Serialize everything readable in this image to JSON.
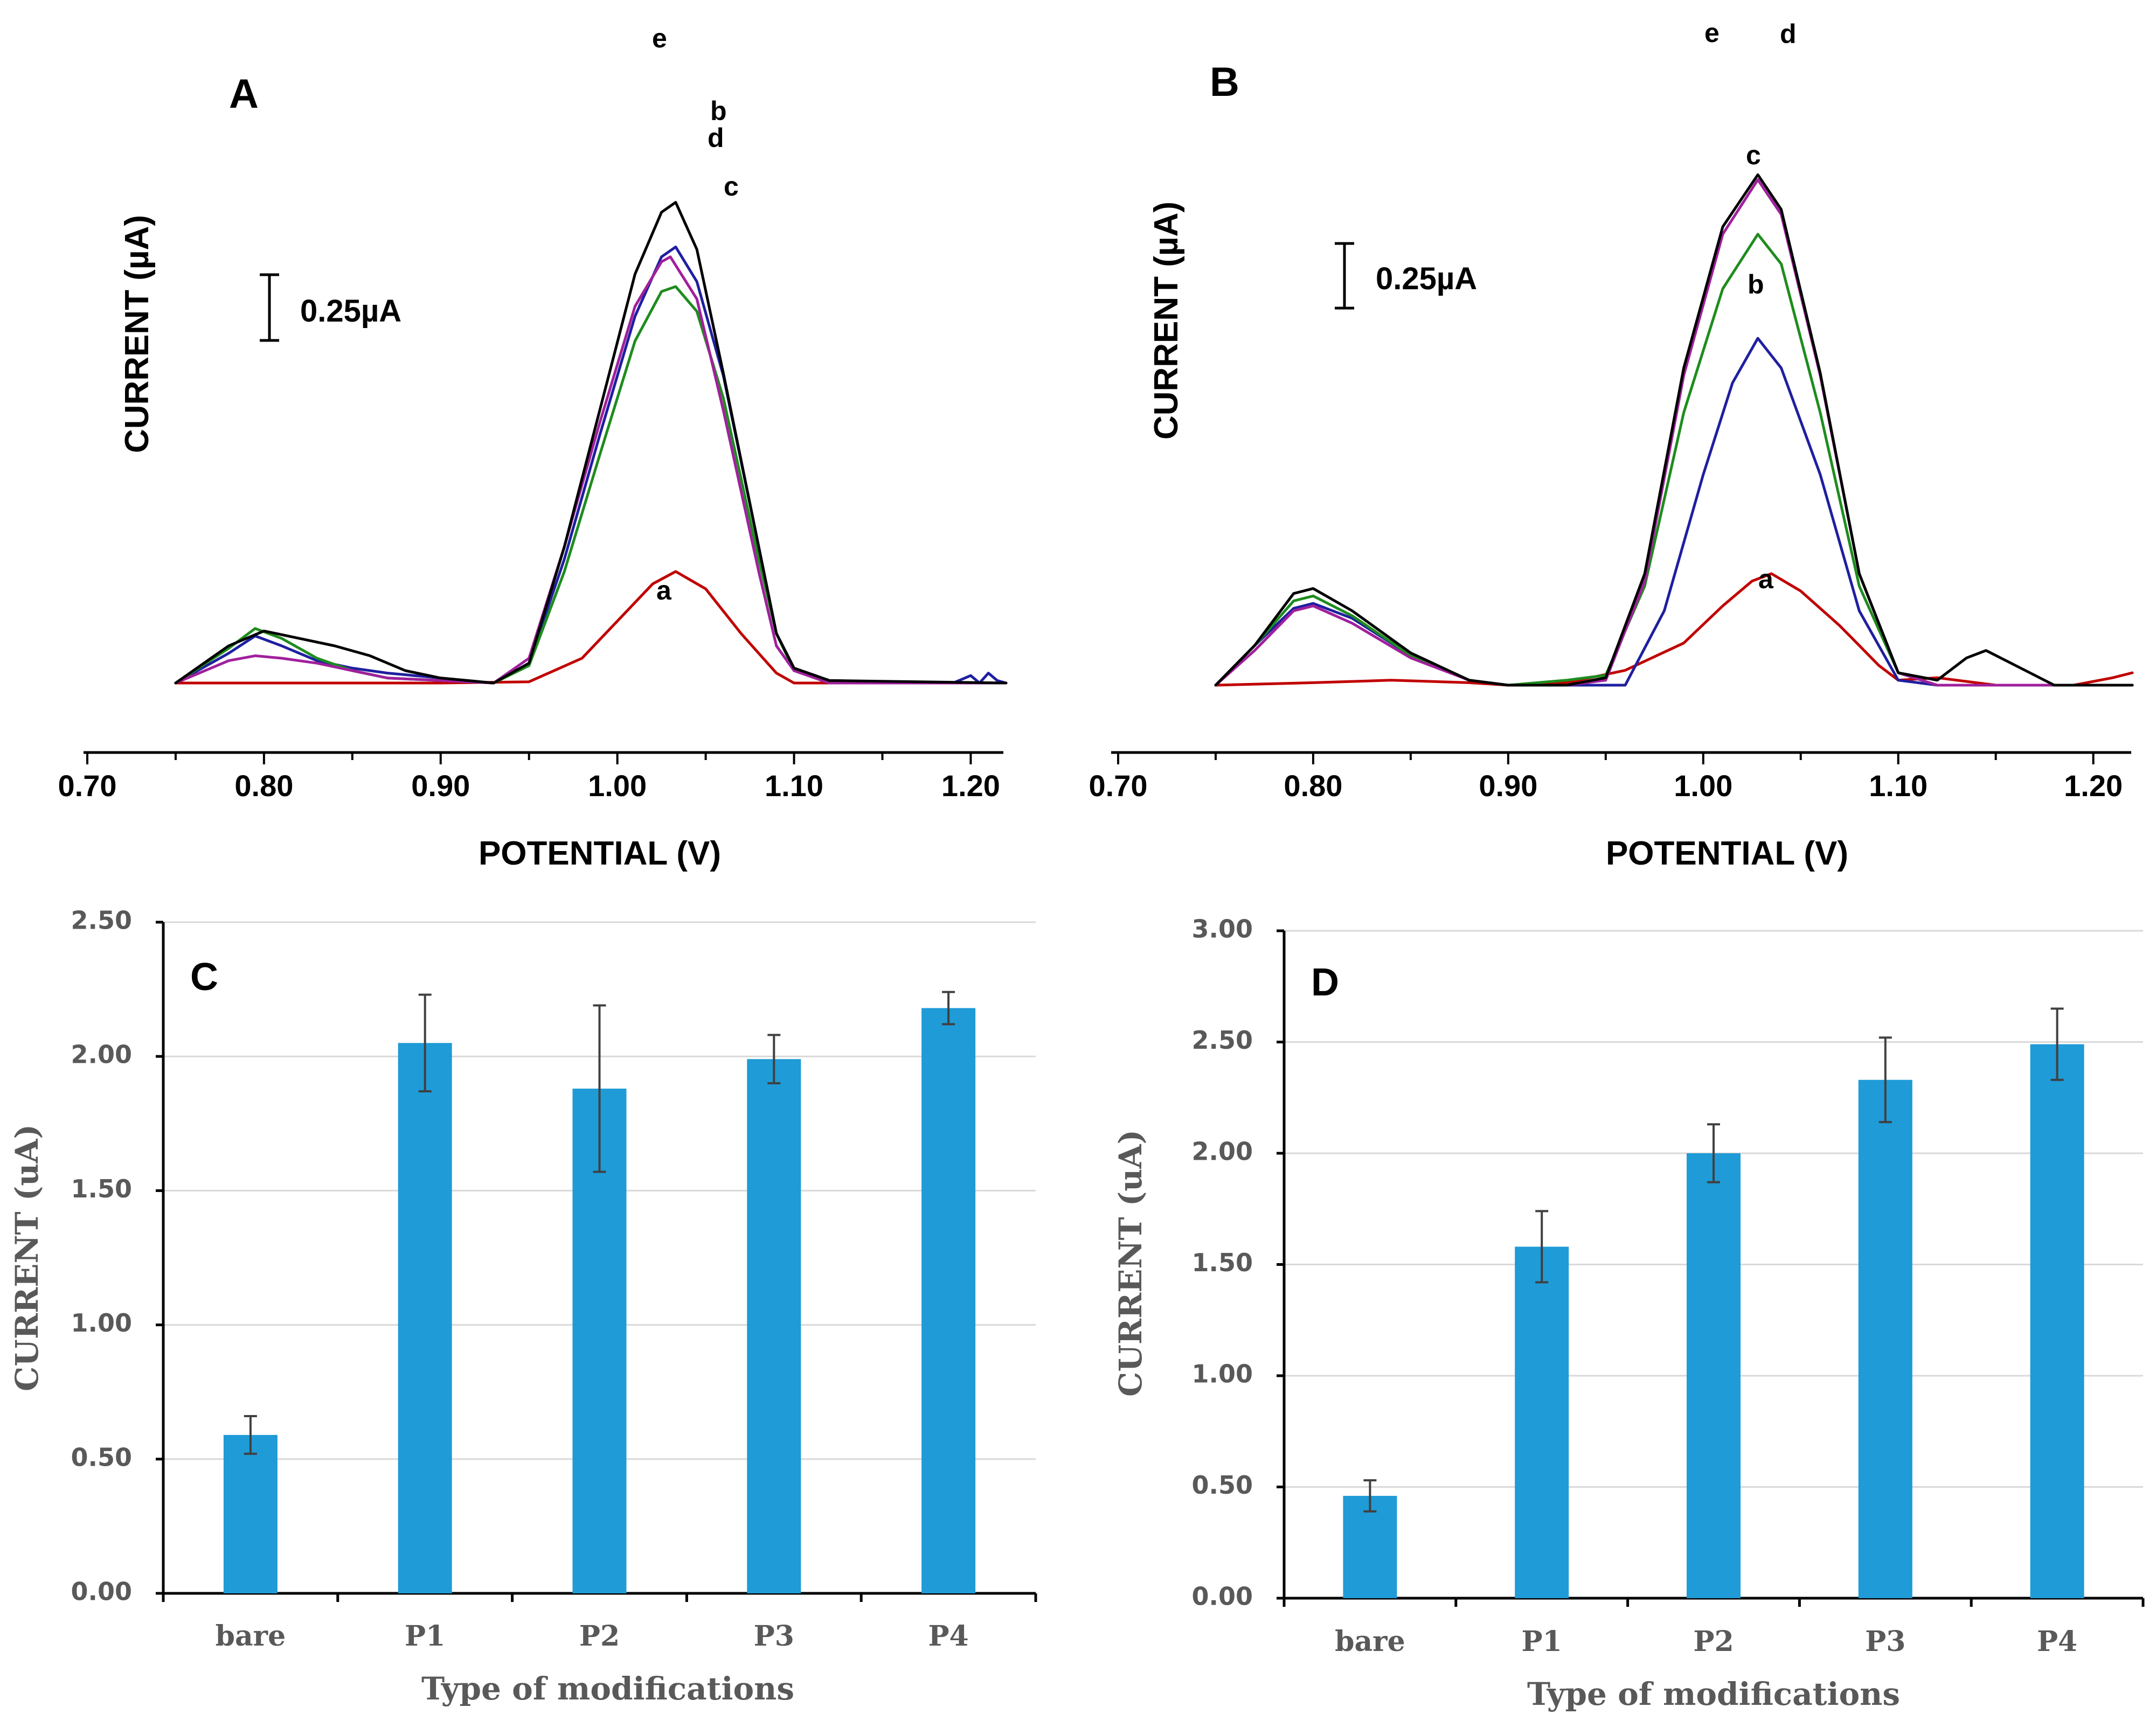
{
  "chart_data": [
    {
      "panel": "A",
      "type": "line",
      "xlabel": "POTENTIAL (V)",
      "ylabel": "CURRENT (µA)",
      "xticks": [
        "0.70",
        "0.80",
        "0.90",
        "1.00",
        "1.10",
        "1.20"
      ],
      "xlim": [
        0.7,
        1.22
      ],
      "scale_bar": "0.25µA",
      "scale_bar_value": 0.25,
      "series": [
        {
          "name": "a",
          "color": "#c00000",
          "points": [
            [
              0.75,
              0
            ],
            [
              0.9,
              0
            ],
            [
              0.95,
              0.005
            ],
            [
              0.98,
              0.1
            ],
            [
              1.0,
              0.25
            ],
            [
              1.02,
              0.4
            ],
            [
              1.033,
              0.45
            ],
            [
              1.05,
              0.38
            ],
            [
              1.07,
              0.2
            ],
            [
              1.09,
              0.04
            ],
            [
              1.1,
              0.0
            ],
            [
              1.22,
              0
            ]
          ]
        },
        {
          "name": "b",
          "color": "#1f1fa0",
          "points": [
            [
              0.75,
              0
            ],
            [
              0.78,
              0.12
            ],
            [
              0.795,
              0.19
            ],
            [
              0.81,
              0.15
            ],
            [
              0.83,
              0.09
            ],
            [
              0.85,
              0.06
            ],
            [
              0.87,
              0.04
            ],
            [
              0.9,
              0.02
            ],
            [
              0.93,
              0.0
            ],
            [
              0.95,
              0.08
            ],
            [
              0.97,
              0.5
            ],
            [
              0.99,
              1.0
            ],
            [
              1.01,
              1.48
            ],
            [
              1.025,
              1.72
            ],
            [
              1.033,
              1.76
            ],
            [
              1.045,
              1.62
            ],
            [
              1.06,
              1.24
            ],
            [
              1.08,
              0.55
            ],
            [
              1.09,
              0.2
            ],
            [
              1.1,
              0.06
            ],
            [
              1.12,
              0.01
            ],
            [
              1.19,
              0.0
            ],
            [
              1.2,
              0.03
            ],
            [
              1.205,
              0.0
            ],
            [
              1.21,
              0.04
            ],
            [
              1.215,
              0.01
            ],
            [
              1.22,
              0.0
            ]
          ]
        },
        {
          "name": "c",
          "color": "#1e8c1e",
          "points": [
            [
              0.75,
              0
            ],
            [
              0.78,
              0.14
            ],
            [
              0.795,
              0.22
            ],
            [
              0.81,
              0.18
            ],
            [
              0.83,
              0.1
            ],
            [
              0.85,
              0.05
            ],
            [
              0.87,
              0.02
            ],
            [
              0.9,
              0.01
            ],
            [
              0.93,
              0.0
            ],
            [
              0.95,
              0.07
            ],
            [
              0.97,
              0.45
            ],
            [
              0.99,
              0.92
            ],
            [
              1.01,
              1.38
            ],
            [
              1.025,
              1.58
            ],
            [
              1.033,
              1.6
            ],
            [
              1.045,
              1.5
            ],
            [
              1.06,
              1.15
            ],
            [
              1.08,
              0.5
            ],
            [
              1.09,
              0.2
            ],
            [
              1.1,
              0.05
            ],
            [
              1.12,
              0.0
            ],
            [
              1.22,
              0.0
            ]
          ]
        },
        {
          "name": "d",
          "color": "#a0209c",
          "points": [
            [
              0.75,
              0
            ],
            [
              0.78,
              0.09
            ],
            [
              0.795,
              0.11
            ],
            [
              0.81,
              0.1
            ],
            [
              0.83,
              0.08
            ],
            [
              0.85,
              0.05
            ],
            [
              0.87,
              0.02
            ],
            [
              0.9,
              0.01
            ],
            [
              0.93,
              0.0
            ],
            [
              0.95,
              0.1
            ],
            [
              0.97,
              0.55
            ],
            [
              0.99,
              1.05
            ],
            [
              1.01,
              1.52
            ],
            [
              1.025,
              1.7
            ],
            [
              1.03,
              1.72
            ],
            [
              1.045,
              1.55
            ],
            [
              1.06,
              1.1
            ],
            [
              1.08,
              0.45
            ],
            [
              1.09,
              0.15
            ],
            [
              1.1,
              0.05
            ],
            [
              1.12,
              0.0
            ],
            [
              1.22,
              0.0
            ]
          ]
        },
        {
          "name": "e",
          "color": "#000000",
          "points": [
            [
              0.75,
              0
            ],
            [
              0.78,
              0.15
            ],
            [
              0.8,
              0.21
            ],
            [
              0.82,
              0.18
            ],
            [
              0.84,
              0.15
            ],
            [
              0.86,
              0.11
            ],
            [
              0.88,
              0.05
            ],
            [
              0.9,
              0.02
            ],
            [
              0.93,
              0.0
            ],
            [
              0.95,
              0.08
            ],
            [
              0.97,
              0.55
            ],
            [
              0.99,
              1.1
            ],
            [
              1.01,
              1.65
            ],
            [
              1.025,
              1.9
            ],
            [
              1.033,
              1.94
            ],
            [
              1.045,
              1.75
            ],
            [
              1.06,
              1.25
            ],
            [
              1.08,
              0.55
            ],
            [
              1.09,
              0.2
            ],
            [
              1.1,
              0.06
            ],
            [
              1.12,
              0.01
            ],
            [
              1.22,
              0.0
            ]
          ]
        }
      ]
    },
    {
      "panel": "B",
      "type": "line",
      "xlabel": "POTENTIAL (V)",
      "ylabel": "CURRENT (µA)",
      "xticks": [
        "0.70",
        "0.80",
        "0.90",
        "1.00",
        "1.10",
        "1.20"
      ],
      "xlim": [
        0.7,
        1.22
      ],
      "scale_bar": "0.25µA",
      "scale_bar_value": 0.25,
      "series": [
        {
          "name": "a",
          "color": "#c00000",
          "points": [
            [
              0.75,
              0
            ],
            [
              0.8,
              0.01
            ],
            [
              0.84,
              0.02
            ],
            [
              0.88,
              0.01
            ],
            [
              0.9,
              0.0
            ],
            [
              0.93,
              0.01
            ],
            [
              0.96,
              0.06
            ],
            [
              0.99,
              0.17
            ],
            [
              1.01,
              0.32
            ],
            [
              1.025,
              0.42
            ],
            [
              1.035,
              0.45
            ],
            [
              1.05,
              0.38
            ],
            [
              1.07,
              0.24
            ],
            [
              1.09,
              0.08
            ],
            [
              1.1,
              0.02
            ],
            [
              1.12,
              0.03
            ],
            [
              1.15,
              0.0
            ],
            [
              1.19,
              0.0
            ],
            [
              1.21,
              0.03
            ],
            [
              1.22,
              0.05
            ]
          ]
        },
        {
          "name": "b",
          "color": "#1f1fa0",
          "points": [
            [
              0.75,
              0
            ],
            [
              0.77,
              0.16
            ],
            [
              0.79,
              0.31
            ],
            [
              0.8,
              0.33
            ],
            [
              0.82,
              0.27
            ],
            [
              0.85,
              0.12
            ],
            [
              0.88,
              0.02
            ],
            [
              0.9,
              0.0
            ],
            [
              0.93,
              0.0
            ],
            [
              0.96,
              0.0
            ],
            [
              0.98,
              0.3
            ],
            [
              1.0,
              0.85
            ],
            [
              1.015,
              1.22
            ],
            [
              1.028,
              1.4
            ],
            [
              1.04,
              1.28
            ],
            [
              1.06,
              0.85
            ],
            [
              1.08,
              0.3
            ],
            [
              1.1,
              0.02
            ],
            [
              1.12,
              0.0
            ],
            [
              1.22,
              0.0
            ]
          ]
        },
        {
          "name": "c",
          "color": "#1e8c1e",
          "points": [
            [
              0.75,
              0
            ],
            [
              0.77,
              0.16
            ],
            [
              0.79,
              0.34
            ],
            [
              0.8,
              0.36
            ],
            [
              0.82,
              0.28
            ],
            [
              0.85,
              0.12
            ],
            [
              0.88,
              0.02
            ],
            [
              0.9,
              0.0
            ],
            [
              0.93,
              0.02
            ],
            [
              0.95,
              0.04
            ],
            [
              0.97,
              0.4
            ],
            [
              0.99,
              1.1
            ],
            [
              1.01,
              1.6
            ],
            [
              1.028,
              1.82
            ],
            [
              1.04,
              1.7
            ],
            [
              1.06,
              1.1
            ],
            [
              1.08,
              0.4
            ],
            [
              1.1,
              0.05
            ],
            [
              1.12,
              0.0
            ],
            [
              1.22,
              0.0
            ]
          ]
        },
        {
          "name": "d",
          "color": "#a0209c",
          "points": [
            [
              0.75,
              0
            ],
            [
              0.77,
              0.14
            ],
            [
              0.79,
              0.3
            ],
            [
              0.8,
              0.32
            ],
            [
              0.82,
              0.25
            ],
            [
              0.85,
              0.11
            ],
            [
              0.88,
              0.02
            ],
            [
              0.9,
              0.0
            ],
            [
              0.93,
              0.0
            ],
            [
              0.95,
              0.02
            ],
            [
              0.97,
              0.42
            ],
            [
              0.99,
              1.25
            ],
            [
              1.01,
              1.82
            ],
            [
              1.028,
              2.04
            ],
            [
              1.04,
              1.9
            ],
            [
              1.06,
              1.25
            ],
            [
              1.08,
              0.45
            ],
            [
              1.1,
              0.05
            ],
            [
              1.12,
              0.0
            ],
            [
              1.22,
              0.0
            ]
          ]
        },
        {
          "name": "e",
          "color": "#000000",
          "points": [
            [
              0.75,
              0
            ],
            [
              0.77,
              0.16
            ],
            [
              0.79,
              0.37
            ],
            [
              0.8,
              0.39
            ],
            [
              0.82,
              0.3
            ],
            [
              0.85,
              0.13
            ],
            [
              0.88,
              0.02
            ],
            [
              0.9,
              0.0
            ],
            [
              0.93,
              0.0
            ],
            [
              0.95,
              0.03
            ],
            [
              0.97,
              0.45
            ],
            [
              0.99,
              1.28
            ],
            [
              1.01,
              1.85
            ],
            [
              1.028,
              2.06
            ],
            [
              1.04,
              1.92
            ],
            [
              1.06,
              1.26
            ],
            [
              1.08,
              0.45
            ],
            [
              1.1,
              0.05
            ],
            [
              1.12,
              0.02
            ],
            [
              1.135,
              0.11
            ],
            [
              1.145,
              0.14
            ],
            [
              1.16,
              0.08
            ],
            [
              1.18,
              0.0
            ],
            [
              1.22,
              0.0
            ]
          ]
        }
      ]
    },
    {
      "panel": "C",
      "type": "bar",
      "categories": [
        "bare",
        "P1",
        "P2",
        "P3",
        "P4"
      ],
      "values": [
        0.59,
        2.05,
        1.88,
        1.99,
        2.18
      ],
      "errors": [
        0.07,
        0.18,
        0.31,
        0.09,
        0.06
      ],
      "ylim": [
        0,
        2.5
      ],
      "yticks": [
        "0.00",
        "0.50",
        "1.00",
        "1.50",
        "2.00",
        "2.50"
      ],
      "xlabel": "Type of modifications",
      "ylabel": "CURRENT (uA)",
      "color": "#1f9bd7"
    },
    {
      "panel": "D",
      "type": "bar",
      "categories": [
        "bare",
        "P1",
        "P2",
        "P3",
        "P4"
      ],
      "values": [
        0.46,
        1.58,
        2.0,
        2.33,
        2.49
      ],
      "errors": [
        0.07,
        0.16,
        0.13,
        0.19,
        0.16
      ],
      "ylim": [
        0,
        3.0
      ],
      "yticks": [
        "0.00",
        "0.50",
        "1.00",
        "1.50",
        "2.00",
        "2.50",
        "3.00"
      ],
      "xlabel": "Type of modifications",
      "ylabel": "CURRENT (uA)",
      "color": "#1f9bd7"
    }
  ]
}
